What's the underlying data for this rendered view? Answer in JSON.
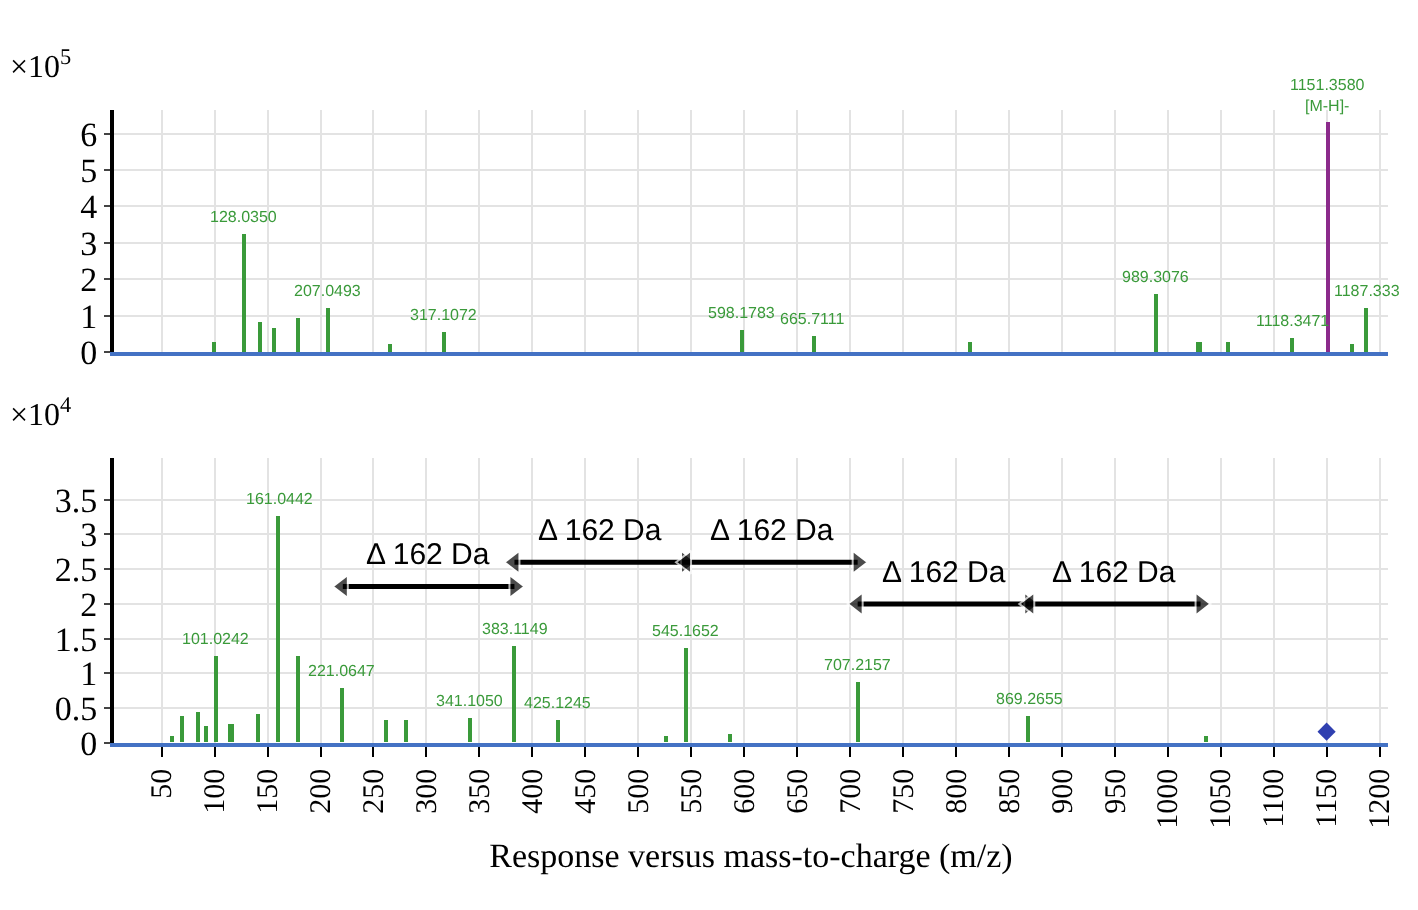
{
  "chart_data": [
    {
      "type": "bar",
      "x": [
        100,
        128.035,
        144,
        157,
        180,
        207.0493,
        266,
        317.1072,
        598.1783,
        665.7111,
        813,
        989.3076,
        1030,
        1058,
        1118.3471,
        1151.358,
        1175,
        1187.333
      ],
      "values": [
        0.3,
        3.25,
        0.8,
        0.65,
        0.95,
        1.2,
        0.2,
        0.55,
        0.6,
        0.42,
        0.25,
        1.58,
        0.3,
        0.25,
        0.4,
        6.3,
        0.2,
        1.2
      ],
      "colors": [
        "#3a9a3a",
        "#3a9a3a",
        "#3a9a3a",
        "#3a9a3a",
        "#3a9a3a",
        "#3a9a3a",
        "#3a9a3a",
        "#3a9a3a",
        "#3a9a3a",
        "#3a9a3a",
        "#3a9a3a",
        "#3a9a3a",
        "#3a9a3a",
        "#3a9a3a",
        "#3a9a3a",
        "#8b2a8b",
        "#3a9a3a",
        "#3a9a3a"
      ],
      "xlim": [
        5,
        1208
      ],
      "xticks": [
        50,
        100,
        150,
        200,
        250,
        300,
        350,
        400,
        450,
        500,
        550,
        600,
        650,
        700,
        750,
        800,
        850,
        900,
        950,
        1000,
        1050,
        1100,
        1150,
        1200
      ],
      "ylim": [
        0,
        6.65
      ],
      "yticks": [
        0,
        1,
        2,
        3,
        4,
        5,
        6
      ],
      "tick_labels": "y",
      "grid": true,
      "annotations": [
        "×10$^{5}$",
        {
          "text": "128.0350",
          "x": 128.035,
          "y": 3.25
        },
        {
          "text": "207.0493",
          "x": 207.0493,
          "y": 1.2
        },
        {
          "text": "317.1072",
          "x": 317.1072,
          "y": 0.55
        },
        {
          "text": "598.1783",
          "x": 598.1783,
          "y": 0.6
        },
        {
          "text": "665.7111",
          "x": 665.7111,
          "y": 0.42
        },
        {
          "text": "989.3076",
          "x": 989.3076,
          "y": 1.58
        },
        {
          "text": "1118.3471",
          "x": 1118.3471,
          "y": 0.4
        },
        {
          "text": "1151.3580\n[M-H]-",
          "x": 1151.358,
          "y": 6.3
        },
        {
          "text": "1187.333",
          "x": 1187.333,
          "y": 1.2
        }
      ]
    },
    {
      "xlabel": "Response versus mass-to-charge (m/z)",
      "xlim": [
        5,
        1208
      ],
      "xticks": [
        50,
        100,
        150,
        200,
        250,
        300,
        350,
        400,
        450,
        500,
        550,
        600,
        650,
        700,
        750,
        800,
        850,
        900,
        950,
        1000,
        1050,
        1100,
        1150,
        1200
      ],
      "ylim": [
        0,
        4.1
      ],
      "yticks": [
        0,
        {
          "value": 0.5,
          "label": "0.5"
        },
        1,
        {
          "value": 1.5,
          "label": "1.5"
        },
        2,
        {
          "value": 2.5,
          "label": "2.5"
        },
        3,
        {
          "value": 3.5,
          "label": "3.5"
        }
      ],
      "grid": true,
      "type": "bar",
      "series": [
        {
          "type": "bar",
          "color": "#3a9a3a",
          "x": [
            61,
            69,
            84,
            93,
            101.0242,
            116,
            141,
            161.0442,
            180,
            221.0647,
            262,
            281,
            341.105,
            383.1149,
            425.1245,
            526,
            545.1652,
            587,
            707.2157,
            869.2655,
            1036
          ],
          "values": [
            0.1,
            0.38,
            0.45,
            0.25,
            1.26,
            0.28,
            0.42,
            3.26,
            1.26,
            0.8,
            0.33,
            0.33,
            0.37,
            1.4,
            0.34,
            0.1,
            1.36,
            0.12,
            0.88,
            0.4,
            0.1
          ]
        },
        {
          "type": "scatter",
          "color": "#3040b0",
          "marker": "diamond",
          "x": [
            1150
          ],
          "values": [
            0.16
          ]
        },
        {
          "type": "line",
          "color": "#000000",
          "marker": "triangle",
          "x": [
            221.0647,
            383.1149
          ],
          "values": [
            2.25,
            2.25
          ]
        },
        {
          "type": "line",
          "color": "#000000",
          "marker": "triangle",
          "x": [
            383.1149,
            545.1652
          ],
          "values": [
            2.6,
            2.6
          ]
        },
        {
          "type": "line",
          "color": "#000000",
          "marker": "triangle",
          "x": [
            545.1652,
            707.2157
          ],
          "values": [
            2.6,
            2.6
          ]
        },
        {
          "type": "line",
          "color": "#000000",
          "marker": "triangle",
          "x": [
            707.2157,
            869.2655
          ],
          "values": [
            2.0,
            2.0
          ]
        },
        {
          "type": "line",
          "color": "#000000",
          "marker": "triangle",
          "x": [
            869.2655,
            1031
          ],
          "values": [
            2.0,
            2.0
          ]
        }
      ],
      "annotations": [
        "×10$^{4}$",
        {
          "text": "Δ 162 Da",
          "x": 302.09,
          "y": 2.25
        },
        {
          "text": "Δ 162 Da",
          "x": 464.14,
          "y": 2.6
        },
        {
          "text": "Δ 162 Da",
          "x": 626.19,
          "y": 2.6
        },
        {
          "text": "Δ 162 Da",
          "x": 788.24,
          "y": 2.0
        },
        {
          "text": "Δ 162 Da",
          "x": 950.13,
          "y": 2.0
        },
        {
          "text": "101.0242",
          "x": 101.0242,
          "y": 1.26
        },
        {
          "text": "161.0442",
          "x": 161.0442,
          "y": 3.26
        },
        {
          "text": "221.0647",
          "x": 221.0647,
          "y": 0.8
        },
        {
          "text": "341.1050",
          "x": 341.105,
          "y": 0.37
        },
        {
          "text": "383.1149",
          "x": 383.1149,
          "y": 1.4
        },
        {
          "text": "425.1245",
          "x": 425.1245,
          "y": 0.34
        },
        {
          "text": "545.1652",
          "x": 545.1652,
          "y": 1.36
        },
        {
          "text": "707.2157",
          "x": 707.2157,
          "y": 0.88
        },
        {
          "text": "869.2655",
          "x": 869.2655,
          "y": 0.4
        }
      ]
    }
  ]
}
